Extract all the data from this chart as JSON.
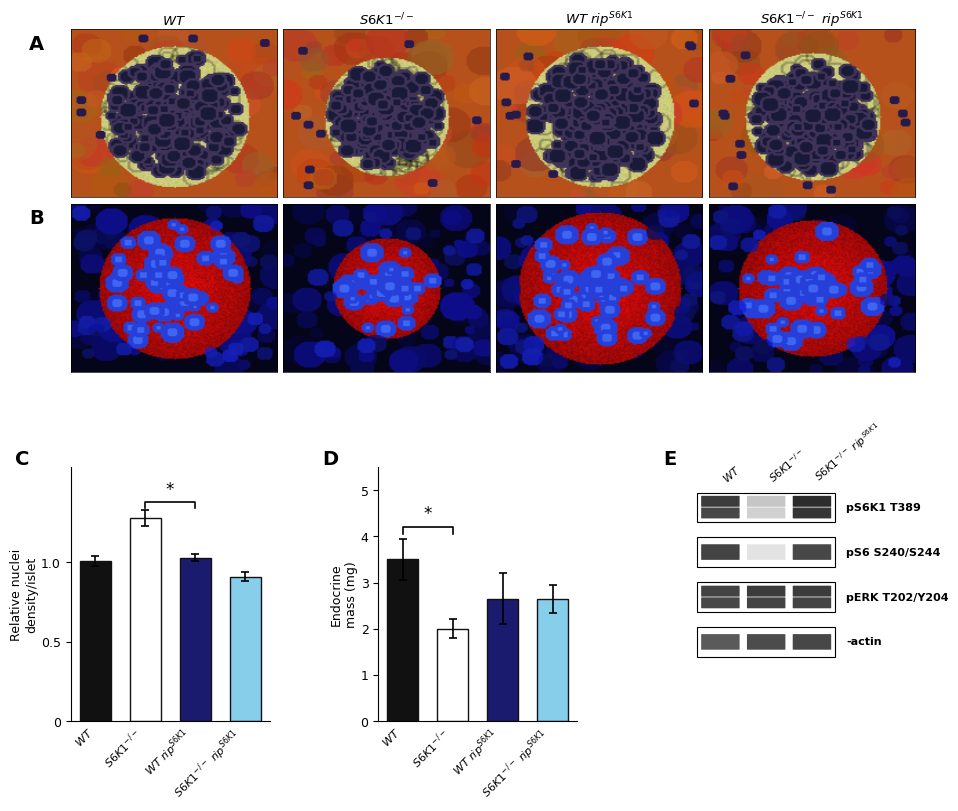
{
  "C_ylabel": "Relative nuclei\ndensity/islet",
  "C_values": [
    1.01,
    1.28,
    1.03,
    0.91
  ],
  "C_errors": [
    0.03,
    0.05,
    0.02,
    0.03
  ],
  "C_colors": [
    "#111111",
    "#ffffff",
    "#1a1a6e",
    "#87ceeb"
  ],
  "D_ylabel": "Endocrine\nmass (mg)",
  "D_values": [
    3.5,
    2.0,
    2.65,
    2.65
  ],
  "D_errors": [
    0.45,
    0.2,
    0.55,
    0.3
  ],
  "D_colors": [
    "#111111",
    "#ffffff",
    "#1a1a6e",
    "#87ceeb"
  ],
  "E_labels": [
    "pS6K1 T389",
    "pS6 S240/S244",
    "pERK T202/Y204",
    "-actin"
  ],
  "background_color": "#ffffff",
  "bar_edgecolor": "#111111",
  "HE_bg_color": "#b5521a",
  "HE_islet_color": "#c8c87a",
  "HE_nuclei_color": "#1a1a3a",
  "HE_bg_cell_colors": [
    "#8b3a14",
    "#c4622d",
    "#9e4520"
  ],
  "fluor_bg_color": "#050518",
  "fluor_islet_color": "#cc2200",
  "fluor_nuclei_in_color": "#4466dd",
  "fluor_nuclei_out_color": "#3355bb",
  "size_factors_A": [
    1.0,
    0.85,
    1.0,
    0.92
  ],
  "size_factors_B": [
    1.0,
    0.72,
    1.08,
    0.98
  ],
  "col_header_texts": [
    "WT",
    "S6K1^{-/-}",
    "WT\\ rip^{S6K1}",
    "S6K1^{-/-}\\ rip^{S6K1}"
  ]
}
